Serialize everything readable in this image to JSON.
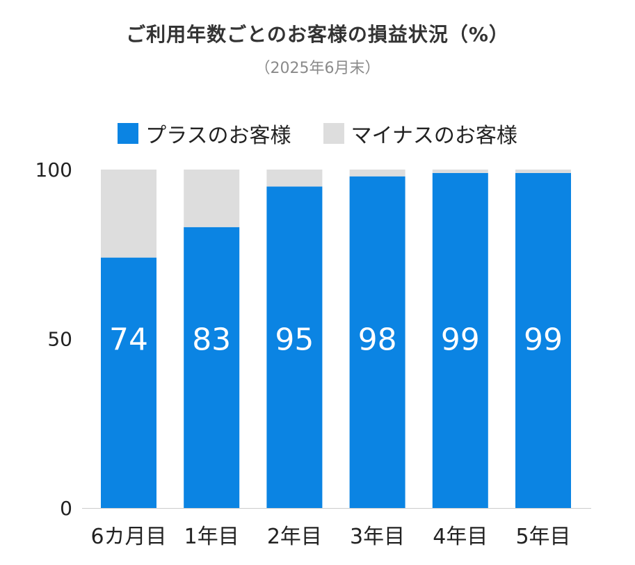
{
  "chart_data": {
    "type": "bar",
    "stacked": true,
    "title": "ご利用年数ごとのお客様の損益状況（%）",
    "subtitle": "（2025年6月末）",
    "categories": [
      "6カ月目",
      "1年目",
      "2年目",
      "3年目",
      "4年目",
      "5年目"
    ],
    "series": [
      {
        "name": "プラスのお客様",
        "color": "#0b84e3",
        "values": [
          74,
          83,
          95,
          98,
          99,
          99
        ],
        "labels": [
          "74",
          "83",
          "95",
          "98",
          "99",
          "99"
        ]
      },
      {
        "name": "マイナスのお客様",
        "color": "#dddddd",
        "values": [
          26,
          17,
          5,
          2,
          1,
          1
        ]
      }
    ],
    "yticks": [
      {
        "value": 0,
        "label": "0"
      },
      {
        "value": 50,
        "label": "50"
      },
      {
        "value": 100,
        "label": "100"
      }
    ],
    "ylim": [
      0,
      100
    ],
    "legend_position": "top-center",
    "grid": false
  }
}
